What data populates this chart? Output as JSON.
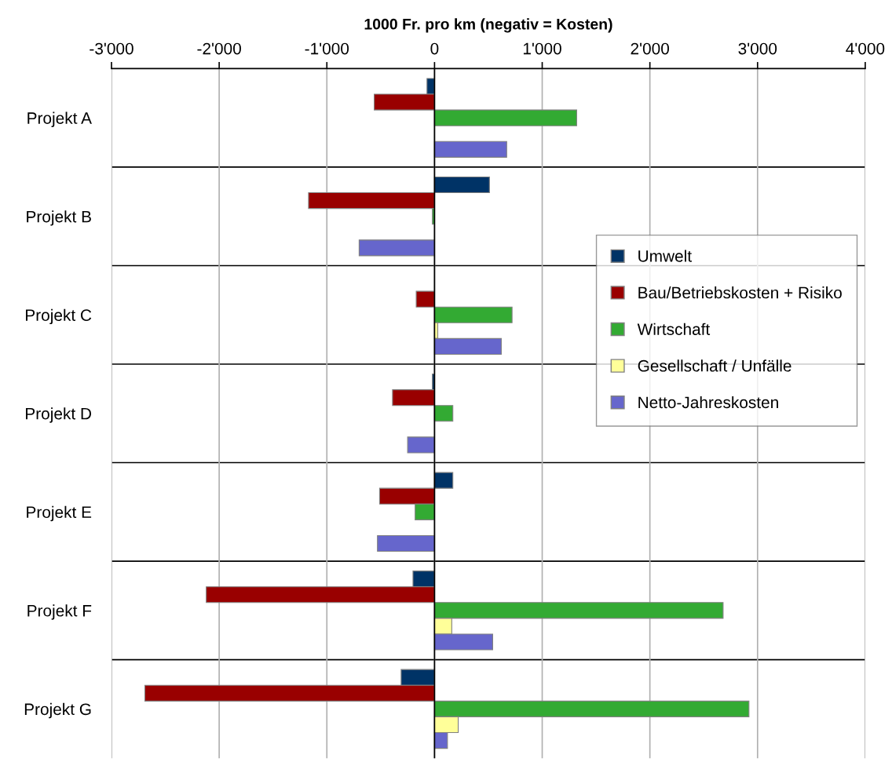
{
  "chart_data": {
    "type": "bar",
    "orientation": "horizontal",
    "xlabel": "1000 Fr. pro km (negativ = Kosten)",
    "categories": [
      "Projekt A",
      "Projekt B",
      "Projekt C",
      "Projekt D",
      "Projekt E",
      "Projekt F",
      "Projekt G"
    ],
    "series": [
      {
        "name": "Umwelt",
        "color": "#003366",
        "values": [
          -70,
          510,
          null,
          -20,
          170,
          -200,
          -310
        ]
      },
      {
        "name": "Bau/Betriebskosten + Risiko",
        "color": "#990000",
        "values": [
          -560,
          -1170,
          -170,
          -390,
          -510,
          -2120,
          -2690
        ]
      },
      {
        "name": "Wirtschaft",
        "color": "#33aa33",
        "values": [
          1320,
          -20,
          720,
          170,
          -180,
          2680,
          2920
        ]
      },
      {
        "name": "Gesellschaft / Unfälle",
        "color": "#ffff99",
        "values": [
          0,
          0,
          30,
          null,
          0,
          160,
          220
        ]
      },
      {
        "name": "Netto-Jahreskosten",
        "color": "#6666cc",
        "values": [
          670,
          -700,
          620,
          -250,
          -530,
          540,
          120
        ]
      }
    ],
    "xlim": [
      -3000,
      4000
    ],
    "xticks": [
      {
        "value": -3000,
        "label": "-3'000"
      },
      {
        "value": -2000,
        "label": "-2'000"
      },
      {
        "value": -1000,
        "label": "-1'000"
      },
      0,
      {
        "value": 1000,
        "label": "1'000"
      },
      {
        "value": 2000,
        "label": "2'000"
      },
      {
        "value": 3000,
        "label": "3'000"
      },
      {
        "value": 4000,
        "label": "4'000"
      }
    ],
    "grid": true,
    "legend": "center right"
  }
}
